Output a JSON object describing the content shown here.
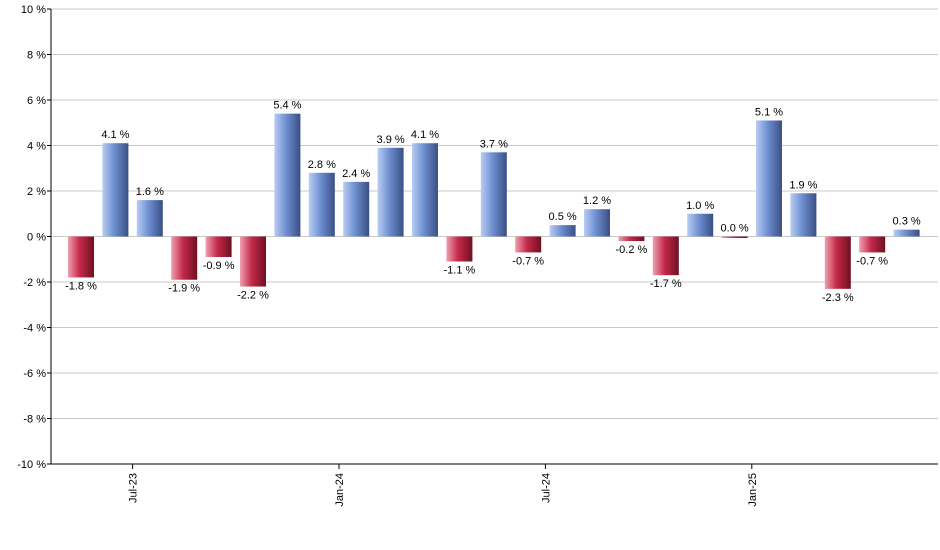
{
  "chart_data": {
    "type": "bar",
    "title": "",
    "xlabel": "",
    "ylabel": "",
    "ylim": [
      -10,
      10
    ],
    "y_ticks": [
      10,
      8,
      6,
      4,
      2,
      0,
      -2,
      -4,
      -6,
      -8,
      -10
    ],
    "y_tick_suffix": " %",
    "grid": true,
    "values": [
      -1.8,
      4.1,
      1.6,
      -1.9,
      -0.9,
      -2.2,
      5.4,
      2.8,
      2.4,
      3.9,
      4.1,
      -1.1,
      3.7,
      -0.7,
      0.5,
      1.2,
      -0.2,
      -1.7,
      1.0,
      0.0,
      5.1,
      1.9,
      -2.3,
      -0.7,
      0.3
    ],
    "labels": [
      "-1.8 %",
      "4.1 %",
      "1.6 %",
      "-1.9 %",
      "-0.9 %",
      "-2.2 %",
      "5.4 %",
      "2.8 %",
      "2.4 %",
      "3.9 %",
      "4.1 %",
      "-1.1 %",
      "3.7 %",
      "-0.7 %",
      "0.5 %",
      "1.2 %",
      "-0.2 %",
      "-1.7 %",
      "1.0 %",
      "0.0 %",
      "5.1 %",
      "1.9 %",
      "-2.3 %",
      "-0.7 %",
      "0.3 %"
    ],
    "x_ticks": [
      {
        "label": "Jul-23",
        "index": 1.5
      },
      {
        "label": "Jan-24",
        "index": 7.5
      },
      {
        "label": "Jul-24",
        "index": 13.5
      },
      {
        "label": "Jan-25",
        "index": 19.5
      }
    ],
    "colors": {
      "positive": "#6e8fd0",
      "negative": "#c42a4a",
      "grid": "#c8c8c8",
      "axis": "#000000"
    }
  }
}
